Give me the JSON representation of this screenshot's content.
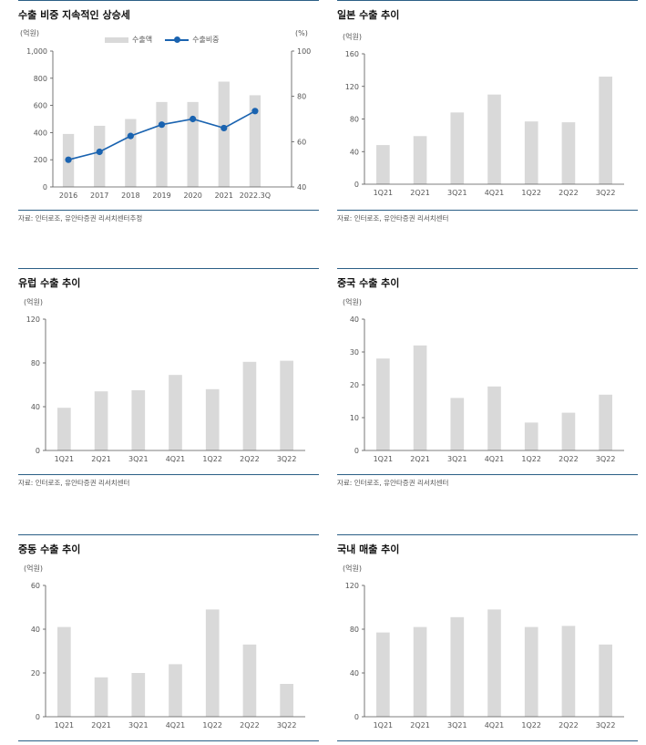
{
  "panels": [
    {
      "title": "수출 비중 지속적인 상승세",
      "source": "자료: 인터로조, 유안타증권 리서치센터추정"
    },
    {
      "title": "일본 수출 추이",
      "source": "자료: 인터로조, 유안타증권 리서치센터"
    },
    {
      "title": "유럽 수출 추이",
      "source": "자료: 인터로조, 유안타증권 리서치센터"
    },
    {
      "title": "중국 수출 추이",
      "source": "자료: 인터로조, 유안타증권 리서치센터"
    },
    {
      "title": "중동 수출 추이",
      "source": ""
    },
    {
      "title": "국내 매출 추이",
      "source": ""
    }
  ],
  "colors": {
    "bar": "#d9d9d9",
    "line": "#1a63b0",
    "rule": "#2b5f86",
    "axis": "#555555"
  },
  "chart_data": [
    {
      "type": "bar",
      "title": "수출 비중 지속적인 상승세",
      "categories": [
        "2016",
        "2017",
        "2018",
        "2019",
        "2020",
        "2021",
        "2022.3Q"
      ],
      "series": [
        {
          "name": "수출액",
          "type": "bar",
          "axis": "left",
          "values": [
            390,
            450,
            500,
            625,
            625,
            775,
            675
          ]
        },
        {
          "name": "수출비중",
          "type": "line",
          "axis": "right",
          "values": [
            52,
            55.5,
            62.5,
            67.5,
            70,
            66,
            73.5
          ]
        }
      ],
      "ylabel": "(억원)",
      "y2label": "(%)",
      "ylim": [
        0,
        1000
      ],
      "yticks": [
        "0",
        "200",
        "400",
        "600",
        "800",
        "1,000"
      ],
      "y2lim": [
        40,
        100
      ],
      "y2ticks": [
        "40",
        "60",
        "80",
        "100"
      ],
      "legend": "top"
    },
    {
      "type": "bar",
      "title": "일본 수출 추이",
      "categories": [
        "1Q21",
        "2Q21",
        "3Q21",
        "4Q21",
        "1Q22",
        "2Q22",
        "3Q22"
      ],
      "values": [
        48,
        59,
        88,
        110,
        77,
        76,
        132
      ],
      "ylabel": "(억원)",
      "ylim": [
        0,
        160
      ],
      "yticks": [
        "0",
        "40",
        "80",
        "120",
        "160"
      ]
    },
    {
      "type": "bar",
      "title": "유럽 수출 추이",
      "categories": [
        "1Q21",
        "2Q21",
        "3Q21",
        "4Q21",
        "1Q22",
        "2Q22",
        "3Q22"
      ],
      "values": [
        39,
        54,
        55,
        69,
        56,
        81,
        82
      ],
      "ylabel": "(억원)",
      "ylim": [
        0,
        120
      ],
      "yticks": [
        "0",
        "40",
        "80",
        "120"
      ]
    },
    {
      "type": "bar",
      "title": "중국 수출 추이",
      "categories": [
        "1Q21",
        "2Q21",
        "3Q21",
        "4Q21",
        "1Q22",
        "2Q22",
        "3Q22"
      ],
      "values": [
        28,
        32,
        16,
        19.5,
        8.5,
        11.5,
        17
      ],
      "ylabel": "(억원)",
      "ylim": [
        0,
        40
      ],
      "yticks": [
        "0",
        "10",
        "20",
        "30",
        "40"
      ]
    },
    {
      "type": "bar",
      "title": "중동 수출 추이",
      "categories": [
        "1Q21",
        "2Q21",
        "3Q21",
        "4Q21",
        "1Q22",
        "2Q22",
        "3Q22"
      ],
      "values": [
        41,
        18,
        20,
        24,
        49,
        33,
        15
      ],
      "ylabel": "(억원)",
      "ylim": [
        0,
        60
      ],
      "yticks": [
        "0",
        "20",
        "40",
        "60"
      ]
    },
    {
      "type": "bar",
      "title": "국내 매출 추이",
      "categories": [
        "1Q21",
        "2Q21",
        "3Q21",
        "4Q21",
        "1Q22",
        "2Q22",
        "3Q22"
      ],
      "values": [
        77,
        82,
        91,
        98,
        82,
        83,
        66
      ],
      "ylabel": "(억원)",
      "ylim": [
        0,
        120
      ],
      "yticks": [
        "0",
        "40",
        "80",
        "120"
      ]
    }
  ]
}
